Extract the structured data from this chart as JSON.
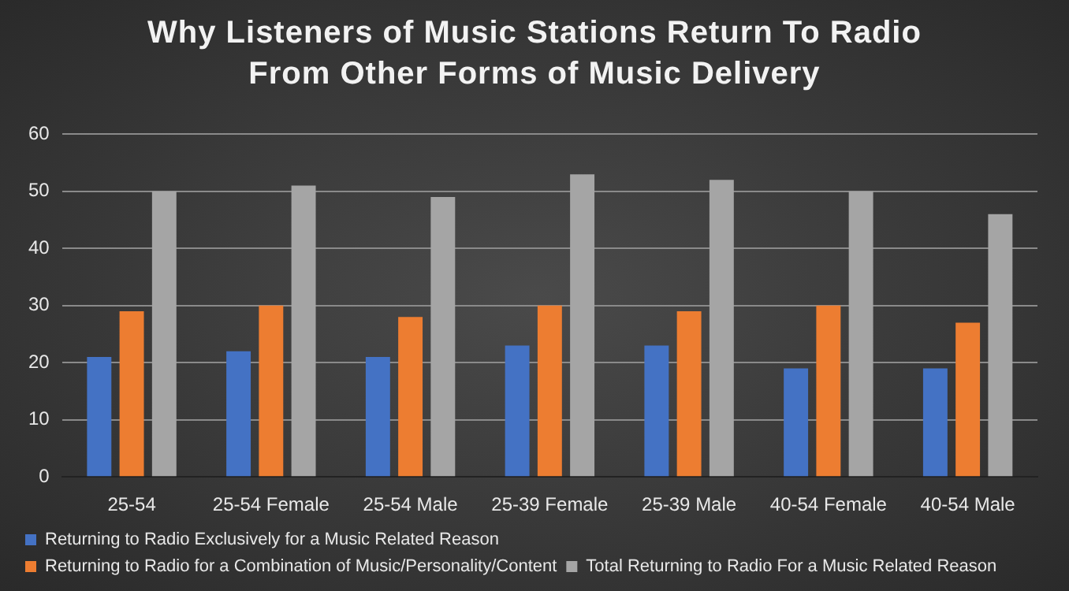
{
  "chart_data": {
    "type": "bar",
    "title": "Why Listeners of Music Stations Return To Radio\nFrom Other Forms of Music Delivery",
    "categories": [
      "25-54",
      "25-54 Female",
      "25-54 Male",
      "25-39 Female",
      "25-39 Male",
      "40-54 Female",
      "40-54 Male"
    ],
    "series": [
      {
        "name": "Returning to Radio Exclusively for a Music Related Reason",
        "color": "#4472c4",
        "values": [
          21,
          22,
          21,
          23,
          23,
          19,
          19
        ]
      },
      {
        "name": "Returning to Radio for a Combination of Music/Personality/Content",
        "color": "#ed7d31",
        "values": [
          29,
          30,
          28,
          30,
          29,
          30,
          27
        ]
      },
      {
        "name": "Total Returning to Radio For a Music Related Reason",
        "color": "#a5a5a5",
        "values": [
          50,
          51,
          49,
          53,
          52,
          50,
          46
        ]
      }
    ],
    "ylim": [
      0,
      60
    ],
    "yticks": [
      0,
      10,
      20,
      30,
      40,
      50,
      60
    ],
    "grid": "y",
    "legend": "bottom"
  }
}
